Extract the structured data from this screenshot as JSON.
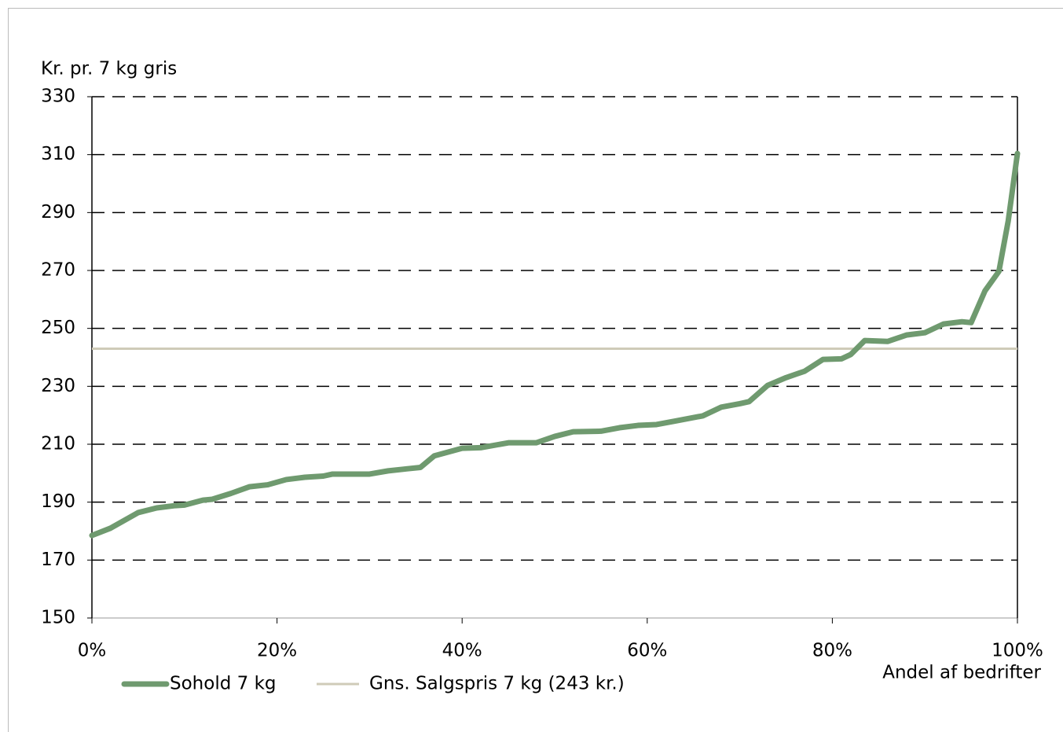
{
  "chart_data": {
    "type": "line",
    "y_label": "Kr. pr. 7 kg gris",
    "x_label": "Andel af bedrifter",
    "x": [
      0,
      2,
      5,
      7,
      9,
      10,
      12,
      13,
      15,
      17,
      19,
      21,
      23,
      25,
      26,
      30,
      32,
      34,
      35.5,
      37,
      40,
      42,
      45,
      48,
      50,
      52,
      55,
      57,
      59,
      61,
      63,
      66,
      68,
      70,
      71,
      73,
      75,
      77,
      79,
      81,
      82,
      83.5,
      86,
      88,
      90,
      92,
      94,
      95,
      96.5,
      98,
      99,
      100
    ],
    "series": [
      {
        "name": "Sohold 7 kg",
        "color": "#6f9a6f",
        "values": [
          178.5,
          181,
          186.4,
          188,
          188.8,
          189,
          190.7,
          191,
          193,
          195.3,
          196,
          197.8,
          198.6,
          199,
          199.7,
          199.7,
          200.8,
          201.5,
          202,
          206,
          208.6,
          208.8,
          210.5,
          210.5,
          212.7,
          214.3,
          214.5,
          215.7,
          216.5,
          216.8,
          218,
          219.8,
          222.8,
          224,
          224.7,
          230.3,
          233,
          235.2,
          239.3,
          239.5,
          241,
          245.8,
          245.5,
          247.7,
          248.5,
          251.5,
          252.3,
          252,
          263,
          269.7,
          287,
          310.4
        ]
      }
    ],
    "reference_lines": [
      {
        "name": "Gns. Salgspris 7 kg (243 kr.)",
        "value": 243,
        "color": "#cfcbb8"
      }
    ],
    "xlim": [
      0,
      100
    ],
    "xticks": [
      {
        "value": 0,
        "label": "0%"
      },
      {
        "value": 20,
        "label": "20%"
      },
      {
        "value": 40,
        "label": "40%"
      },
      {
        "value": 60,
        "label": "60%"
      },
      {
        "value": 80,
        "label": "80%"
      },
      {
        "value": 100,
        "label": "100%"
      }
    ],
    "ylim": [
      150,
      330
    ],
    "yticks": [
      150,
      170,
      190,
      210,
      230,
      250,
      270,
      290,
      310,
      330
    ],
    "grid": true
  }
}
